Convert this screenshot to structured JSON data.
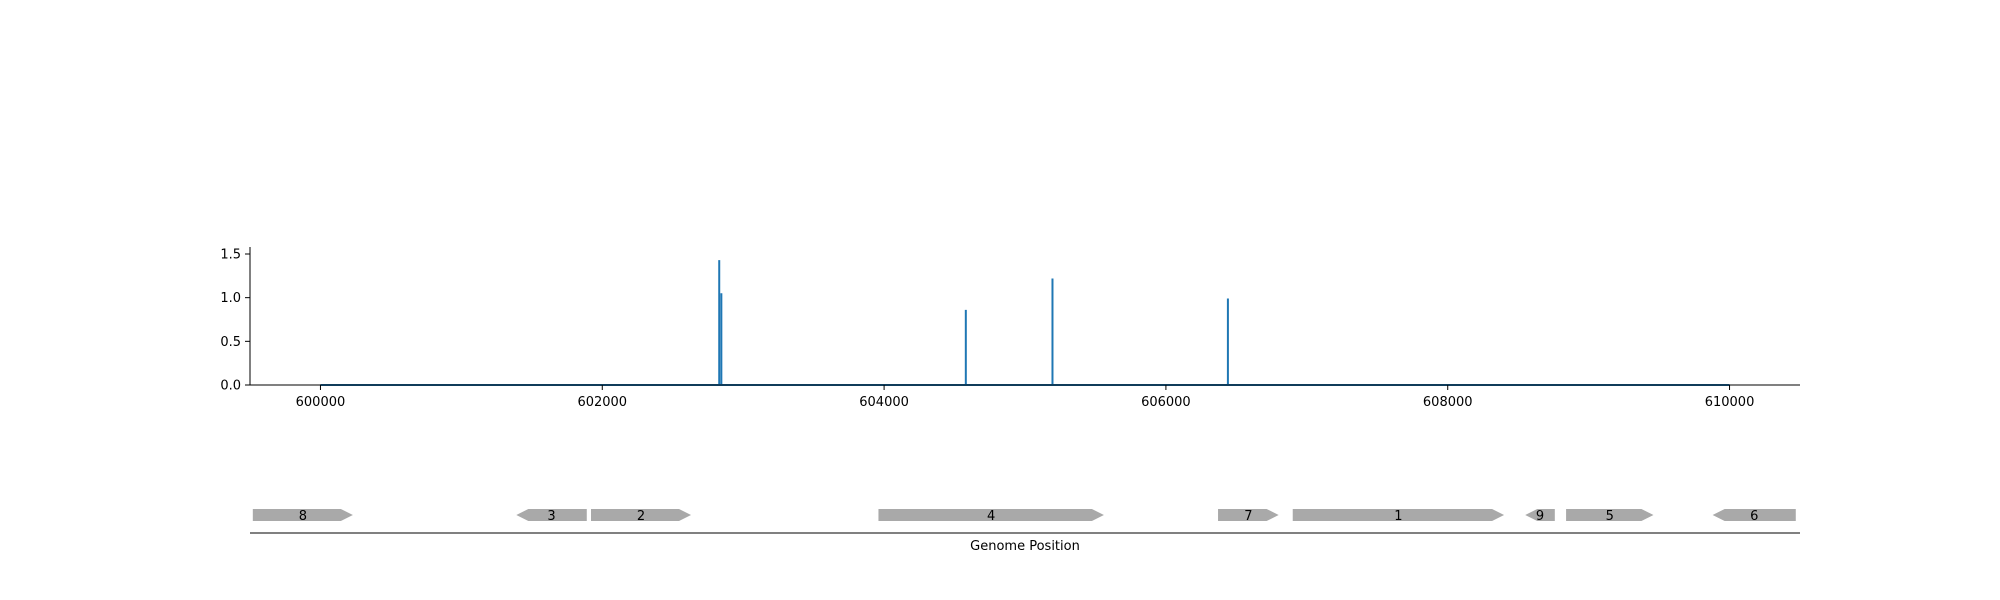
{
  "chart_data": [
    {
      "type": "line",
      "title": "",
      "xlabel": "",
      "ylabel": "",
      "xlim": [
        599500,
        610500
      ],
      "ylim": [
        0.0,
        1.58
      ],
      "x_ticks": [
        600000,
        602000,
        604000,
        606000,
        608000,
        610000
      ],
      "x_tick_labels": [
        "600000",
        "602000",
        "604000",
        "606000",
        "608000",
        "610000"
      ],
      "y_ticks": [
        0.0,
        0.5,
        1.0,
        1.5
      ],
      "y_tick_labels": [
        "0.0",
        "0.5",
        "1.0",
        "1.5"
      ],
      "color": "#1f77b4",
      "baseline": {
        "start": 600000,
        "end": 610000,
        "value": 0.0
      },
      "spikes": [
        {
          "x": 602830,
          "y": 1.43
        },
        {
          "x": 602845,
          "y": 1.05
        },
        {
          "x": 604580,
          "y": 0.86
        },
        {
          "x": 605195,
          "y": 1.22
        },
        {
          "x": 606440,
          "y": 0.99
        }
      ],
      "grid": false
    },
    {
      "type": "gene-track",
      "xlabel": "Genome Position",
      "color": "#a9a9a9",
      "genes": [
        {
          "label": "8",
          "start": 599520,
          "end": 600230,
          "strand": "+"
        },
        {
          "label": "3",
          "start": 601390,
          "end": 601890,
          "strand": "-"
        },
        {
          "label": "2",
          "start": 601920,
          "end": 602630,
          "strand": "+"
        },
        {
          "label": "4",
          "start": 603960,
          "end": 605560,
          "strand": "+"
        },
        {
          "label": "7",
          "start": 606370,
          "end": 606800,
          "strand": "+"
        },
        {
          "label": "1",
          "start": 606900,
          "end": 608400,
          "strand": "+"
        },
        {
          "label": "9",
          "start": 608550,
          "end": 608760,
          "strand": "-"
        },
        {
          "label": "5",
          "start": 608840,
          "end": 609460,
          "strand": "+"
        },
        {
          "label": "6",
          "start": 609880,
          "end": 610470,
          "strand": "-"
        }
      ]
    }
  ]
}
